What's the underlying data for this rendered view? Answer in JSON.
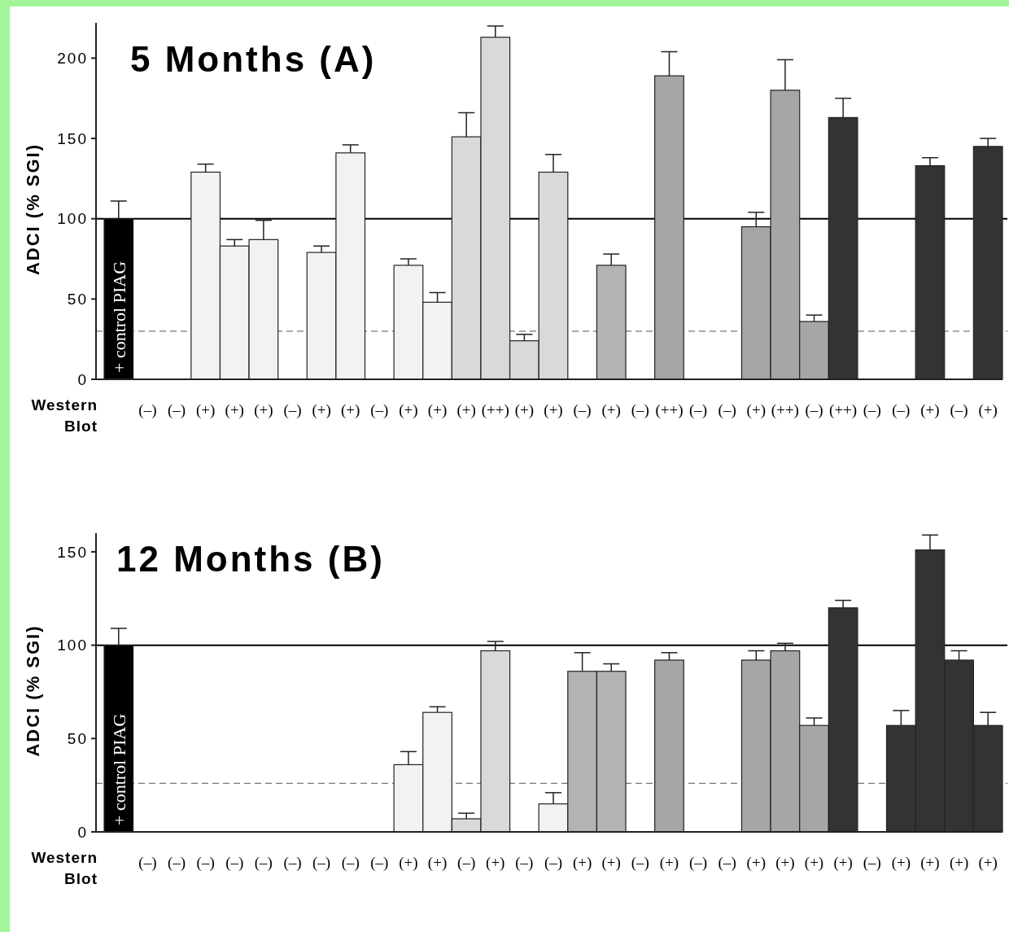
{
  "chart_data": [
    {
      "type": "bar",
      "title": "5 Months (A)",
      "ylabel": "ADCI (% SGI)",
      "xlabel": "Western Blot",
      "categories": [
        "+ control PIAG",
        "(–)",
        "(–)",
        "(+)",
        "(+)",
        "(+)",
        "(–)",
        "(+)",
        "(+)",
        "(–)",
        "(+)",
        "(+)",
        "(+)",
        "(++)",
        "(+)",
        "(+)",
        "(–)",
        "(+)",
        "(–)",
        "(++)",
        "(–)",
        "(–)",
        "(+)",
        "(++)",
        "(–)",
        "(++)",
        "(–)",
        "(–)",
        "(+)",
        "(–)",
        "(+)"
      ],
      "ylim": [
        0,
        222
      ],
      "yticks": [
        0,
        50,
        100,
        150,
        200
      ],
      "ref_lines": [
        {
          "axis": "y",
          "value": 100,
          "color": "#000000",
          "line_style": "solid"
        },
        {
          "axis": "y",
          "value": 30,
          "color": "#777777",
          "line_style": "dashed"
        }
      ],
      "series": [
        {
          "color": "#000000",
          "values": [
            100,
            null,
            null,
            null,
            null,
            null,
            null,
            null,
            null,
            null,
            null,
            null,
            null,
            null,
            null,
            null,
            null,
            null,
            null,
            null,
            null,
            null,
            null,
            null,
            null,
            null,
            null,
            null,
            null,
            null,
            null
          ],
          "errors": [
            [
              100,
              111
            ],
            null,
            null,
            null,
            null,
            null,
            null,
            null,
            null,
            null,
            null,
            null,
            null,
            null,
            null,
            null,
            null,
            null,
            null,
            null,
            null,
            null,
            null,
            null,
            null,
            null,
            null,
            null,
            null,
            null,
            null
          ]
        },
        {
          "color": "#f2f2f2",
          "values": [
            null,
            null,
            null,
            129,
            83,
            87,
            null,
            79,
            141,
            null,
            71,
            48,
            null,
            null,
            null,
            null,
            null,
            null,
            null,
            null,
            null,
            null,
            null,
            null,
            null,
            null,
            null,
            null,
            null,
            null,
            null
          ],
          "errors": [
            null,
            null,
            null,
            [
              129,
              134
            ],
            [
              83,
              87
            ],
            [
              87,
              99
            ],
            null,
            [
              79,
              83
            ],
            [
              141,
              146
            ],
            null,
            [
              71,
              75
            ],
            [
              48,
              54
            ],
            null,
            null,
            null,
            null,
            null,
            null,
            null,
            null,
            null,
            null,
            null,
            null,
            null,
            null,
            null,
            null,
            null,
            null,
            null
          ]
        },
        {
          "color": "#d9d9d9",
          "values": [
            null,
            null,
            null,
            null,
            null,
            null,
            null,
            null,
            null,
            null,
            null,
            null,
            151,
            213,
            24,
            129,
            null,
            null,
            null,
            null,
            null,
            null,
            null,
            null,
            null,
            null,
            null,
            null,
            null,
            null,
            null
          ],
          "errors": [
            null,
            null,
            null,
            null,
            null,
            null,
            null,
            null,
            null,
            null,
            null,
            null,
            [
              151,
              166
            ],
            [
              213,
              220
            ],
            [
              24,
              28
            ],
            [
              129,
              140
            ],
            null,
            null,
            null,
            null,
            null,
            null,
            null,
            null,
            null,
            null,
            null,
            null,
            null,
            null,
            null
          ]
        },
        {
          "color": "#b3b3b3",
          "values": [
            null,
            null,
            null,
            null,
            null,
            null,
            null,
            null,
            null,
            null,
            null,
            null,
            null,
            null,
            null,
            null,
            null,
            71,
            null,
            null,
            null,
            null,
            null,
            null,
            null,
            null,
            null,
            null,
            null,
            null,
            null
          ],
          "errors": [
            null,
            null,
            null,
            null,
            null,
            null,
            null,
            null,
            null,
            null,
            null,
            null,
            null,
            null,
            null,
            null,
            null,
            [
              71,
              78
            ],
            null,
            null,
            null,
            null,
            null,
            null,
            null,
            null,
            null,
            null,
            null,
            null,
            null
          ]
        },
        {
          "color": "#a6a6a6",
          "values": [
            null,
            null,
            null,
            null,
            null,
            null,
            null,
            null,
            null,
            null,
            null,
            null,
            null,
            null,
            null,
            null,
            null,
            null,
            null,
            189,
            null,
            null,
            95,
            180,
            36,
            null,
            null,
            null,
            null,
            null,
            null
          ],
          "errors": [
            null,
            null,
            null,
            null,
            null,
            null,
            null,
            null,
            null,
            null,
            null,
            null,
            null,
            null,
            null,
            null,
            null,
            null,
            null,
            [
              189,
              204
            ],
            null,
            null,
            [
              95,
              104
            ],
            [
              180,
              199
            ],
            [
              36,
              40
            ],
            null,
            null,
            null,
            null,
            null,
            null
          ]
        },
        {
          "color": "#333333",
          "values": [
            null,
            null,
            null,
            null,
            null,
            null,
            null,
            null,
            null,
            null,
            null,
            null,
            null,
            null,
            null,
            null,
            null,
            null,
            null,
            null,
            null,
            null,
            null,
            null,
            null,
            163,
            null,
            null,
            133,
            null,
            145
          ],
          "errors": [
            null,
            null,
            null,
            null,
            null,
            null,
            null,
            null,
            null,
            null,
            null,
            null,
            null,
            null,
            null,
            null,
            null,
            null,
            null,
            null,
            null,
            null,
            null,
            null,
            null,
            [
              163,
              175
            ],
            null,
            null,
            [
              133,
              138
            ],
            null,
            [
              145,
              150
            ]
          ]
        }
      ]
    },
    {
      "type": "bar",
      "title": "12 Months (B)",
      "ylabel": "ADCI (% SGI)",
      "xlabel": "Western Blot",
      "categories": [
        "+ control PIAG",
        "(–)",
        "(–)",
        "(–)",
        "(–)",
        "(–)",
        "(–)",
        "(–)",
        "(–)",
        "(–)",
        "(+)",
        "(+)",
        "(–)",
        "(+)",
        "(–)",
        "(–)",
        "(+)",
        "(+)",
        "(–)",
        "(+)",
        "(–)",
        "(–)",
        "(+)",
        "(+)",
        "(+)",
        "(+)",
        "(–)",
        "(+)",
        "(+)",
        "(+)",
        "(+)"
      ],
      "ylim": [
        0,
        160
      ],
      "yticks": [
        0,
        50,
        100,
        150
      ],
      "ref_lines": [
        {
          "axis": "y",
          "value": 100,
          "color": "#000000",
          "line_style": "solid"
        },
        {
          "axis": "y",
          "value": 26,
          "color": "#777777",
          "line_style": "dashed"
        }
      ],
      "series": [
        {
          "color": "#000000",
          "values": [
            100,
            null,
            null,
            null,
            null,
            null,
            null,
            null,
            null,
            null,
            null,
            null,
            null,
            null,
            null,
            null,
            null,
            null,
            null,
            null,
            null,
            null,
            null,
            null,
            null,
            null,
            null,
            null,
            null,
            null,
            null
          ],
          "errors": [
            [
              100,
              109
            ],
            null,
            null,
            null,
            null,
            null,
            null,
            null,
            null,
            null,
            null,
            null,
            null,
            null,
            null,
            null,
            null,
            null,
            null,
            null,
            null,
            null,
            null,
            null,
            null,
            null,
            null,
            null,
            null,
            null,
            null
          ]
        },
        {
          "color": "#f2f2f2",
          "values": [
            null,
            null,
            null,
            null,
            null,
            null,
            null,
            null,
            null,
            null,
            36,
            64,
            null,
            null,
            null,
            15,
            null,
            null,
            null,
            null,
            null,
            null,
            null,
            null,
            null,
            null,
            null,
            null,
            null,
            null,
            null
          ],
          "errors": [
            null,
            null,
            null,
            null,
            null,
            null,
            null,
            null,
            null,
            null,
            [
              36,
              43
            ],
            [
              64,
              67
            ],
            null,
            null,
            null,
            [
              15,
              21
            ],
            null,
            null,
            null,
            null,
            null,
            null,
            null,
            null,
            null,
            null,
            null,
            null,
            null,
            null,
            null
          ]
        },
        {
          "color": "#d9d9d9",
          "values": [
            null,
            null,
            null,
            null,
            null,
            null,
            null,
            null,
            null,
            null,
            null,
            null,
            7,
            97,
            null,
            null,
            null,
            null,
            null,
            null,
            null,
            null,
            null,
            null,
            null,
            null,
            null,
            null,
            null,
            null,
            null
          ],
          "errors": [
            null,
            null,
            null,
            null,
            null,
            null,
            null,
            null,
            null,
            null,
            null,
            null,
            [
              7,
              10
            ],
            [
              97,
              102
            ],
            null,
            null,
            null,
            null,
            null,
            null,
            null,
            null,
            null,
            null,
            null,
            null,
            null,
            null,
            null,
            null,
            null
          ]
        },
        {
          "color": "#b3b3b3",
          "values": [
            null,
            null,
            null,
            null,
            null,
            null,
            null,
            null,
            null,
            null,
            null,
            null,
            null,
            null,
            null,
            null,
            86,
            86,
            null,
            null,
            null,
            null,
            null,
            null,
            null,
            null,
            null,
            null,
            null,
            null,
            null
          ],
          "errors": [
            null,
            null,
            null,
            null,
            null,
            null,
            null,
            null,
            null,
            null,
            null,
            null,
            null,
            null,
            null,
            null,
            [
              86,
              96
            ],
            [
              86,
              90
            ],
            null,
            null,
            null,
            null,
            null,
            null,
            null,
            null,
            null,
            null,
            null,
            null,
            null
          ]
        },
        {
          "color": "#a6a6a6",
          "values": [
            null,
            null,
            null,
            null,
            null,
            null,
            null,
            null,
            null,
            null,
            null,
            null,
            null,
            null,
            null,
            null,
            null,
            null,
            null,
            92,
            null,
            null,
            92,
            97,
            57,
            null,
            null,
            null,
            null,
            null,
            null
          ],
          "errors": [
            null,
            null,
            null,
            null,
            null,
            null,
            null,
            null,
            null,
            null,
            null,
            null,
            null,
            null,
            null,
            null,
            null,
            null,
            null,
            [
              92,
              96
            ],
            null,
            null,
            [
              92,
              97
            ],
            [
              97,
              101
            ],
            [
              57,
              61
            ],
            null,
            null,
            null,
            null,
            null,
            null
          ]
        },
        {
          "color": "#333333",
          "values": [
            null,
            null,
            null,
            null,
            null,
            null,
            null,
            null,
            null,
            null,
            null,
            null,
            null,
            null,
            null,
            null,
            null,
            null,
            null,
            null,
            null,
            null,
            null,
            null,
            null,
            120,
            null,
            57,
            151,
            92,
            57
          ],
          "errors": [
            null,
            null,
            null,
            null,
            null,
            null,
            null,
            null,
            null,
            null,
            null,
            null,
            null,
            null,
            null,
            null,
            null,
            null,
            null,
            null,
            null,
            null,
            null,
            null,
            null,
            [
              120,
              124
            ],
            null,
            [
              57,
              65
            ],
            [
              151,
              159
            ],
            [
              92,
              97
            ],
            [
              57,
              64
            ]
          ]
        }
      ]
    }
  ]
}
